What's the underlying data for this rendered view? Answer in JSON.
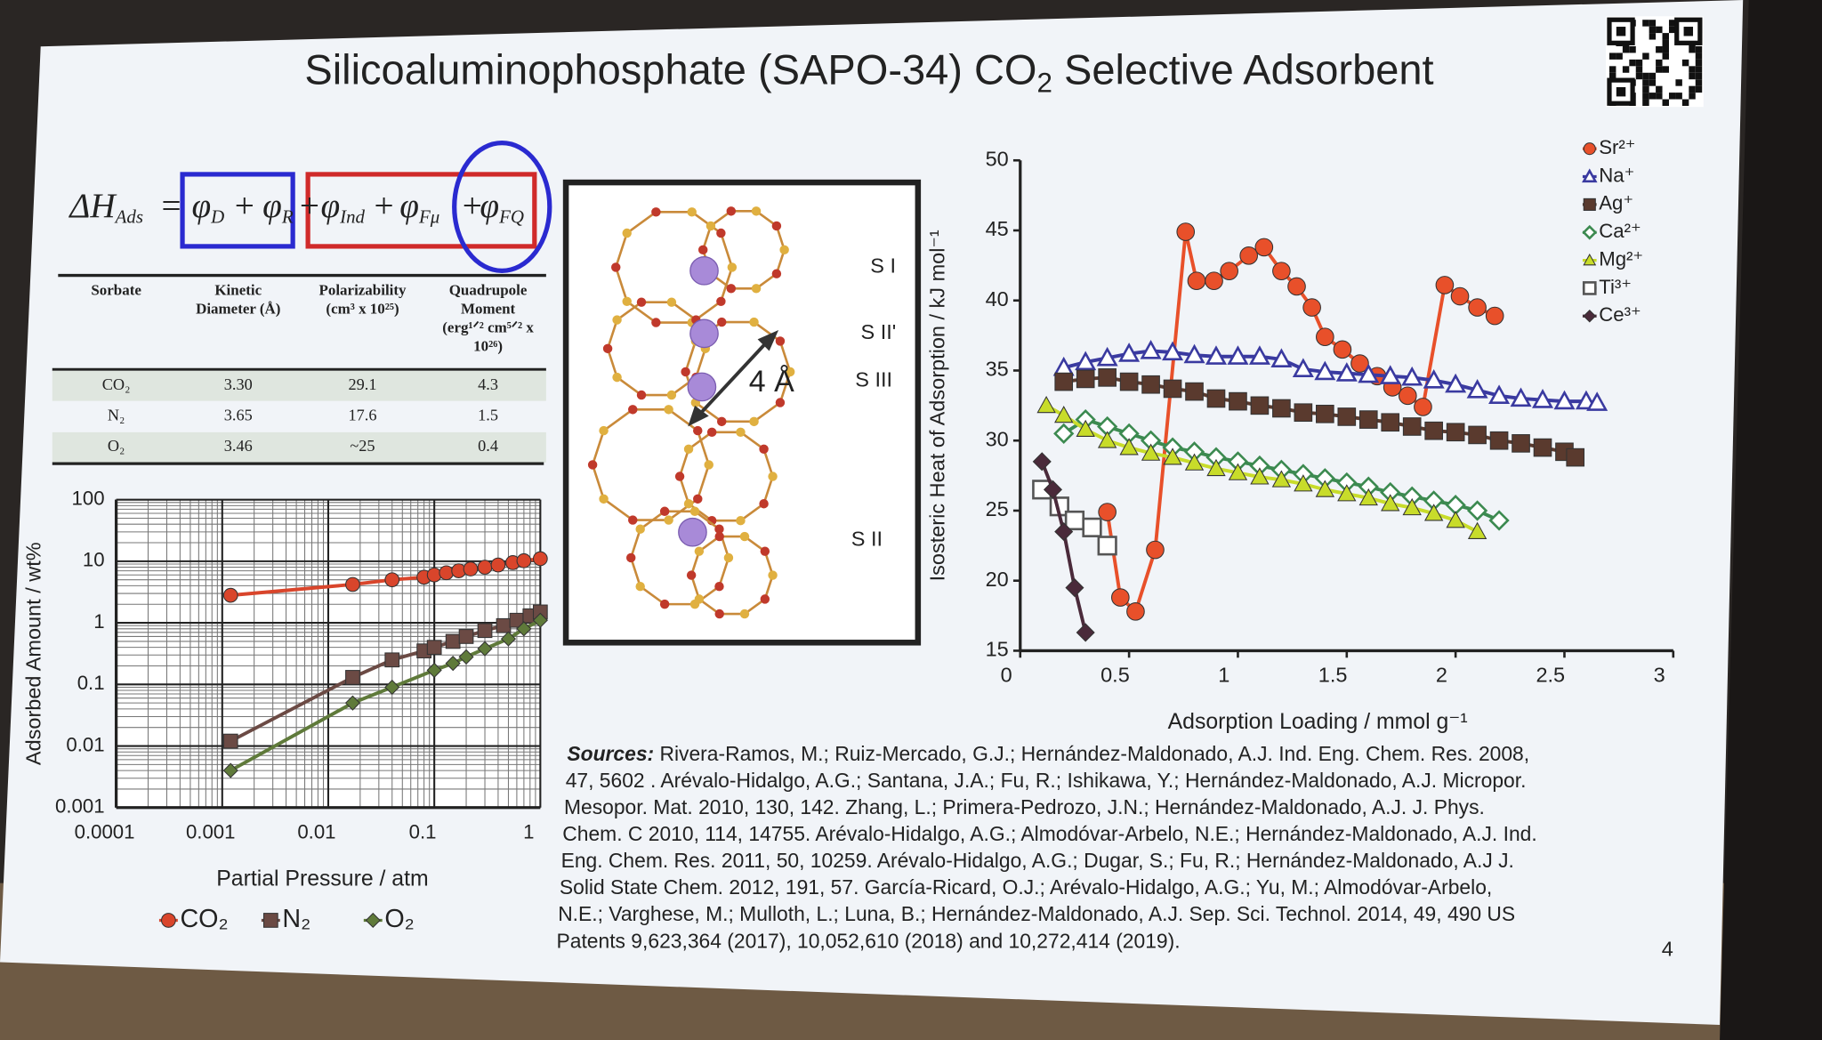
{
  "title": [
    "Silicoaluminophosphate (SAPO-34) CO",
    "2",
    " Selective Adsorbent"
  ],
  "equation": [
    {
      "text": "ΔH",
      "sub": "Ads"
    },
    {
      "text": "="
    },
    {
      "text": "φ",
      "sub": "D"
    },
    {
      "text": "+"
    },
    {
      "text": "φ",
      "sub": "R"
    },
    {
      "text": "+"
    },
    {
      "text": "φ",
      "sub": "Ind"
    },
    {
      "text": "+"
    },
    {
      "text": "φ",
      "sub": "Fμ"
    },
    {
      "text": "+"
    },
    {
      "text": "φ",
      "sub": "FQ"
    }
  ],
  "table": {
    "headers": [
      [
        "Sorbate"
      ],
      [
        "Kinetic",
        "Diameter (Å)"
      ],
      [
        "Polarizability",
        "(cm³ x 10²⁵)"
      ],
      [
        "Quadrupole",
        "Moment",
        "(erg¹ᐟ² cm⁵ᐟ² x",
        "10²⁶)"
      ]
    ],
    "rows": [
      [
        "CO₂",
        "3.30",
        "29.1",
        "4.3"
      ],
      [
        "N₂",
        "3.65",
        "17.6",
        "1.5"
      ],
      [
        "O₂",
        "3.46",
        "~25",
        "0.4"
      ]
    ]
  },
  "structure": {
    "sites": [
      "S I",
      "S II'",
      "S III",
      "S II"
    ],
    "distance": "4 Å"
  },
  "chart_data": [
    {
      "type": "line",
      "x_label": "Partial Pressure / atm",
      "y_label": "Adsorbed Amount / wt%",
      "xscale": "log",
      "yscale": "log",
      "xlim": [
        0.0001,
        1
      ],
      "ylim": [
        0.001,
        100
      ],
      "xticks": [
        0.0001,
        0.001,
        0.01,
        0.1,
        1
      ],
      "yticks": [
        0.001,
        0.01,
        0.1,
        1,
        10,
        100
      ],
      "grid": true,
      "minor_grid": true,
      "legend": "bottom",
      "series": [
        {
          "name": "CO₂",
          "color": "#d9452b",
          "marker": "circle",
          "x": [
            0.0012,
            0.017,
            0.04,
            0.08,
            0.1,
            0.13,
            0.17,
            0.22,
            0.3,
            0.4,
            0.55,
            0.7,
            1
          ],
          "values": [
            2.8,
            4.2,
            5,
            5.5,
            6,
            6.5,
            7,
            7.5,
            8,
            8.7,
            9.5,
            10.2,
            11
          ]
        },
        {
          "name": "N₂",
          "color": "#6b4a44",
          "marker": "square",
          "x": [
            0.0012,
            0.017,
            0.04,
            0.08,
            0.1,
            0.15,
            0.2,
            0.3,
            0.45,
            0.6,
            0.8,
            1
          ],
          "values": [
            0.012,
            0.13,
            0.25,
            0.35,
            0.4,
            0.5,
            0.6,
            0.75,
            0.9,
            1.1,
            1.3,
            1.5
          ]
        },
        {
          "name": "O₂",
          "color": "#5f7a3a",
          "marker": "diamond",
          "x": [
            0.0012,
            0.017,
            0.04,
            0.1,
            0.15,
            0.2,
            0.3,
            0.5,
            0.7,
            1
          ],
          "values": [
            0.004,
            0.05,
            0.09,
            0.17,
            0.22,
            0.28,
            0.38,
            0.55,
            0.8,
            1.1
          ]
        }
      ]
    },
    {
      "type": "line",
      "x_label": "Adsorption Loading / mmol g⁻¹",
      "y_label": "Isosteric Heat of Adsorption / kJ mol⁻¹",
      "xlim": [
        0,
        3
      ],
      "ylim": [
        15,
        50
      ],
      "xticks": [
        0,
        0.5,
        1,
        1.5,
        2,
        2.5,
        3
      ],
      "yticks": [
        15,
        20,
        25,
        30,
        35,
        40,
        45,
        50
      ],
      "grid": false,
      "legend": "upper right",
      "series": [
        {
          "name": "Sr²⁺",
          "color": "#e8502a",
          "marker": "circle",
          "x": [
            0.4,
            0.46,
            0.53,
            0.62,
            0.76,
            0.81,
            0.89,
            0.96,
            1.05,
            1.12,
            1.2,
            1.27,
            1.34,
            1.4,
            1.48,
            1.56,
            1.64,
            1.71,
            1.78,
            1.85,
            1.95,
            2.02,
            2.1,
            2.18
          ],
          "values": [
            24.9,
            18.8,
            17.8,
            22.2,
            44.9,
            41.4,
            41.4,
            42.1,
            43.2,
            43.8,
            42.1,
            41,
            39.5,
            37.4,
            36.5,
            35.5,
            34.6,
            33.8,
            33.2,
            32.4,
            41.1,
            40.3,
            39.5,
            38.9
          ]
        },
        {
          "name": "Na⁺",
          "color": "#3a3aa0",
          "marker": "triangle-open",
          "x": [
            0.2,
            0.3,
            0.4,
            0.5,
            0.6,
            0.7,
            0.8,
            0.9,
            1.0,
            1.1,
            1.2,
            1.3,
            1.4,
            1.5,
            1.6,
            1.7,
            1.8,
            1.9,
            2.0,
            2.1,
            2.2,
            2.3,
            2.4,
            2.5,
            2.6,
            2.65
          ],
          "values": [
            35.2,
            35.6,
            35.9,
            36.2,
            36.4,
            36.3,
            36.1,
            36,
            36,
            36,
            35.8,
            35.1,
            34.9,
            34.8,
            34.7,
            34.6,
            34.5,
            34.3,
            34,
            33.6,
            33.2,
            33,
            32.9,
            32.8,
            32.8,
            32.7
          ]
        },
        {
          "name": "Ag⁺",
          "color": "#5a3a2e",
          "marker": "square",
          "x": [
            0.2,
            0.3,
            0.4,
            0.5,
            0.6,
            0.7,
            0.8,
            0.9,
            1.0,
            1.1,
            1.2,
            1.3,
            1.4,
            1.5,
            1.6,
            1.7,
            1.8,
            1.9,
            2.0,
            2.1,
            2.2,
            2.3,
            2.4,
            2.5,
            2.55
          ],
          "values": [
            34.2,
            34.4,
            34.5,
            34.2,
            34,
            33.7,
            33.5,
            33,
            32.8,
            32.5,
            32.3,
            32,
            31.9,
            31.7,
            31.5,
            31.3,
            31,
            30.7,
            30.6,
            30.4,
            30,
            29.8,
            29.5,
            29.2,
            28.8
          ]
        },
        {
          "name": "Ca²⁺",
          "color": "#3c8a50",
          "marker": "diamond-open",
          "x": [
            0.2,
            0.3,
            0.4,
            0.5,
            0.6,
            0.7,
            0.8,
            0.9,
            1.0,
            1.1,
            1.2,
            1.3,
            1.4,
            1.5,
            1.6,
            1.7,
            1.8,
            1.9,
            2.0,
            2.1,
            2.2
          ],
          "values": [
            30.5,
            31.5,
            31,
            30.5,
            30,
            29.5,
            29.2,
            28.8,
            28.5,
            28.2,
            27.9,
            27.6,
            27.3,
            27,
            26.7,
            26.3,
            26,
            25.7,
            25.4,
            25,
            24.3
          ]
        },
        {
          "name": "Mg²⁺",
          "color": "#c8dc2a",
          "marker": "triangle",
          "x": [
            0.12,
            0.2,
            0.3,
            0.4,
            0.5,
            0.6,
            0.7,
            0.8,
            0.9,
            1.0,
            1.1,
            1.2,
            1.3,
            1.4,
            1.5,
            1.6,
            1.7,
            1.8,
            1.9,
            2.0,
            2.1
          ],
          "values": [
            32.5,
            31.8,
            30.8,
            30,
            29.5,
            29.1,
            28.8,
            28.4,
            28,
            27.7,
            27.4,
            27.2,
            26.9,
            26.5,
            26.2,
            25.9,
            25.5,
            25.2,
            24.8,
            24.3,
            23.5
          ]
        },
        {
          "name": "Ti³⁺",
          "color": "#555555",
          "marker": "square-open",
          "x": [
            0.1,
            0.18,
            0.25,
            0.33,
            0.4
          ],
          "values": [
            26.5,
            25.3,
            24.3,
            23.8,
            22.5
          ]
        },
        {
          "name": "Ce³⁺",
          "color": "#4a2a3a",
          "marker": "diamond",
          "x": [
            0.1,
            0.15,
            0.2,
            0.25,
            0.3
          ],
          "values": [
            28.5,
            26.5,
            23.5,
            19.5,
            16.3
          ]
        }
      ]
    }
  ],
  "sources": {
    "label": "Sources:",
    "lines": [
      " Rivera-Ramos, M.; Ruiz-Mercado, G.J.; Hernández-Maldonado, A.J. Ind. Eng. Chem. Res. 2008,",
      "47, 5602 . Arévalo-Hidalgo, A.G.; Santana, J.A.; Fu, R.; Ishikawa, Y.; Hernández-Maldonado, A.J. Micropor.",
      "Mesopor. Mat. 2010, 130, 142. Zhang, L.; Primera-Pedrozo, J.N.; Hernández-Maldonado, A.J. J. Phys.",
      "Chem. C 2010, 114, 14755. Arévalo-Hidalgo, A.G.; Almodóvar-Arbelo, N.E.; Hernández-Maldonado, A.J. Ind.",
      "Eng. Chem. Res. 2011, 50, 10259. Arévalo-Hidalgo, A.G.; Dugar, S.; Fu, R.; Hernández-Maldonado, A.J J.",
      "Solid State Chem. 2012, 191, 57. García-Ricard, O.J.; Arévalo-Hidalgo, A.G.; Yu, M.; Almodóvar-Arbelo,",
      "N.E.; Varghese, M.; Mulloth, L.; Luna, B.; Hernández-Maldonado, A.J. Sep. Sci. Technol. 2014, 49, 490 US",
      "Patents 9,623,364 (2017), 10,052,610 (2018) and 10,272,414 (2019)."
    ]
  },
  "page_number": "4"
}
